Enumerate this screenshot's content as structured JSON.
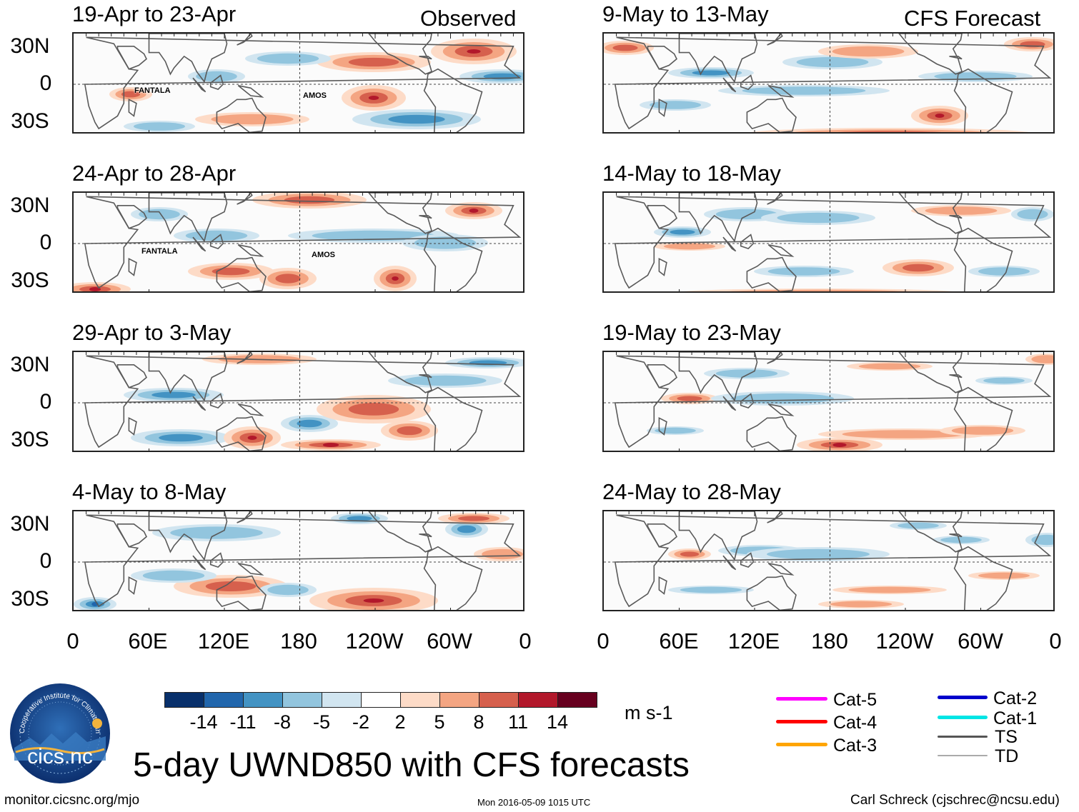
{
  "main_title": "5-day UWND850 with CFS forecasts",
  "left_column_label": "Observed",
  "right_column_label": "CFS Forecast",
  "lat_labels": [
    "30N",
    "0",
    "30S"
  ],
  "lon_labels": [
    "0",
    "60E",
    "120E",
    "180",
    "120W",
    "60W",
    "0"
  ],
  "observed_panels": [
    {
      "title": "19-Apr to 23-Apr",
      "storms": [
        "FANTALA",
        "AMOS"
      ]
    },
    {
      "title": "24-Apr to 28-Apr",
      "storms": [
        "FANTALA",
        "AMOS"
      ]
    },
    {
      "title": "29-Apr to 3-May",
      "storms": []
    },
    {
      "title": "4-May to 8-May",
      "storms": []
    }
  ],
  "forecast_panels": [
    {
      "title": "9-May to 13-May"
    },
    {
      "title": "14-May to 18-May"
    },
    {
      "title": "19-May to 23-May"
    },
    {
      "title": "24-May to 28-May"
    }
  ],
  "colorbar": {
    "unit": "m s-1",
    "labels": [
      "-14",
      "-11",
      "-8",
      "-5",
      "-2",
      "2",
      "5",
      "8",
      "11",
      "14"
    ],
    "colors": [
      "#08306b",
      "#2166ac",
      "#4393c3",
      "#92c5de",
      "#d1e5f0",
      "#ffffff",
      "#fddbc7",
      "#f4a582",
      "#d6604d",
      "#b2182b",
      "#67001f"
    ]
  },
  "storm_legend": [
    {
      "label": "Cat-5",
      "color": "#ff00ff"
    },
    {
      "label": "Cat-4",
      "color": "#ff0000"
    },
    {
      "label": "Cat-3",
      "color": "#ffa500"
    },
    {
      "label": "Cat-2",
      "color": "#0000cc"
    },
    {
      "label": "Cat-1",
      "color": "#00e5e5"
    },
    {
      "label": "TS",
      "color": "#555555"
    },
    {
      "label": "TD",
      "color": "#aaaaaa"
    }
  ],
  "logo": {
    "text": "cics.nc",
    "ring_text": "Cooperative Institute for Climate and Satellites"
  },
  "footer": {
    "url": "monitor.cicsnc.org/mjo",
    "timestamp": "Mon 2016-05-09 1015 UTC",
    "credit": "Carl Schreck (cjschrec@ncsu.edu)"
  }
}
